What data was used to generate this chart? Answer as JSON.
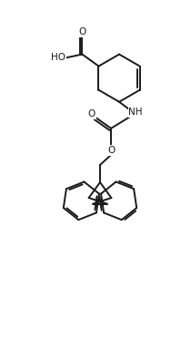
{
  "bg_color": "#ffffff",
  "line_color": "#1a1a1a",
  "line_width": 1.4,
  "font_size": 7.5,
  "figsize": [
    2.1,
    3.84
  ],
  "dpi": 100,
  "xlim": [
    0,
    10
  ],
  "ylim": [
    0,
    19
  ]
}
